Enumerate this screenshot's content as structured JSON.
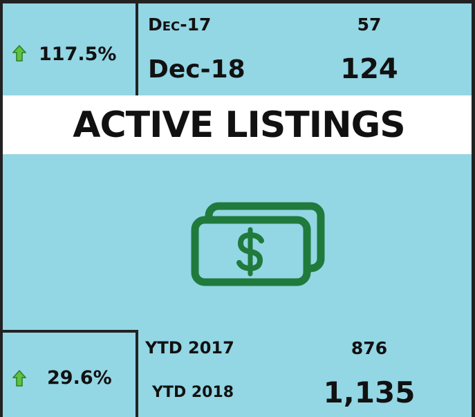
{
  "monthly": {
    "change": "117.5%",
    "rows": [
      {
        "label": "Dec-17",
        "value": "57"
      },
      {
        "label": "Dec-18",
        "value": "124"
      }
    ]
  },
  "title": "ACTIVE LISTINGS",
  "ytd": {
    "change": "29.6%",
    "rows": [
      {
        "label": "YTD 2017",
        "value": "876"
      },
      {
        "label": "YTD 2018",
        "value": "1,135"
      }
    ]
  }
}
